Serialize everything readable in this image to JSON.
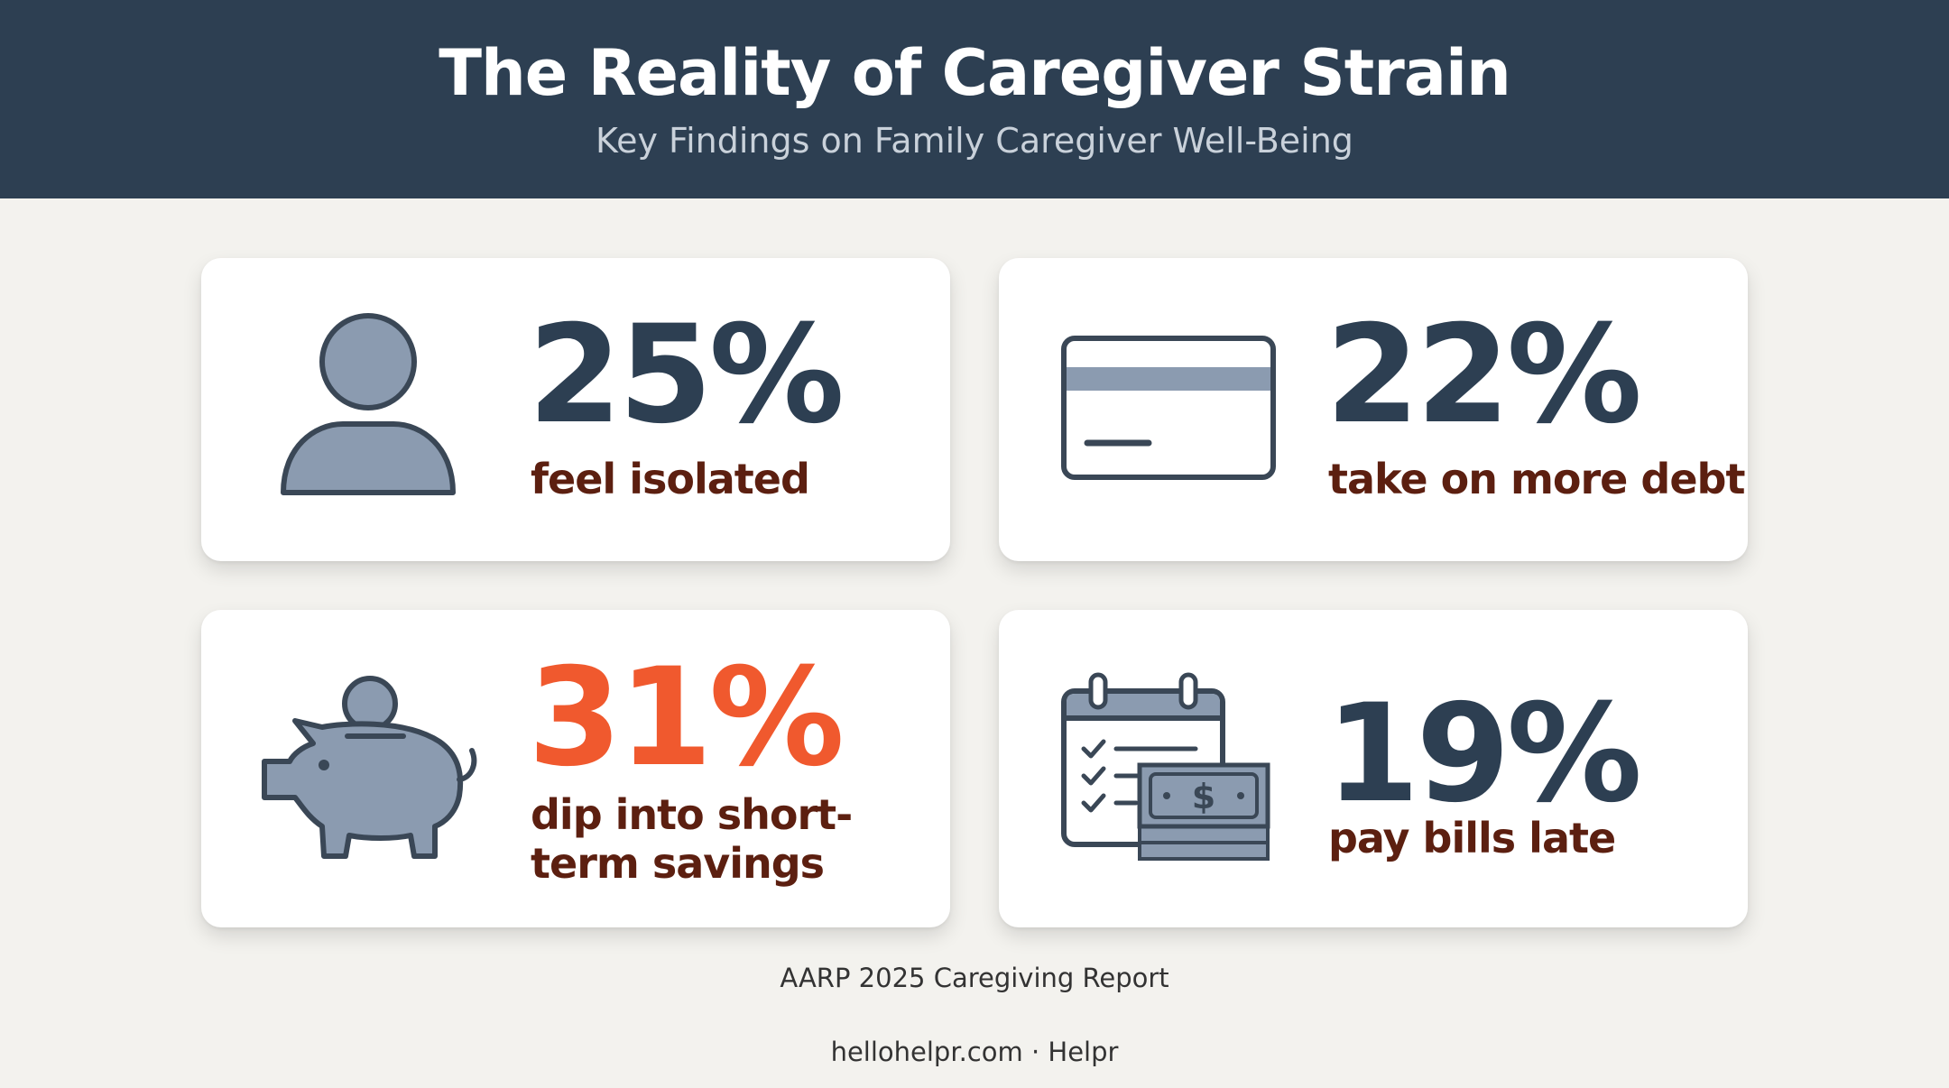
{
  "header": {
    "title": "The Reality of Caregiver Strain",
    "subtitle": "Key Findings on Family Caregiver Well-Being"
  },
  "colors": {
    "header_bg": "#2d3f52",
    "page_bg": "#f3f2ee",
    "stat_dark": "#2d3f52",
    "stat_accent": "#f0592e",
    "label": "#5c1f10",
    "icon_fill": "#8b9bb0",
    "icon_stroke": "#3a4756"
  },
  "stats": [
    {
      "value": "25%",
      "label": "feel isolated",
      "icon": "person-icon"
    },
    {
      "value": "22%",
      "label": "take on more debt",
      "icon": "credit-card-icon"
    },
    {
      "value": "31%",
      "label": "dip into short-term savings",
      "label_line1": "dip into short-",
      "label_line2": "term savings",
      "icon": "piggy-bank-icon"
    },
    {
      "value": "19%",
      "label": "pay bills late",
      "icon": "calendar-money-icon",
      "currency_symbol": "$"
    }
  ],
  "source": "AARP 2025 Caregiving Report",
  "footer": "hellohelpr.com · Helpr"
}
